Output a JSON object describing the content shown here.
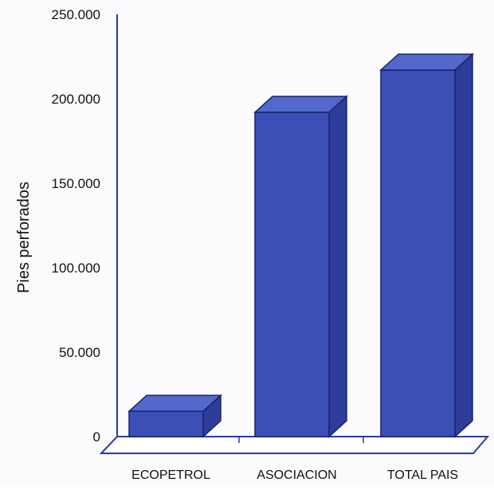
{
  "chart_data": {
    "type": "bar",
    "style": "3d",
    "title": "",
    "xlabel": "",
    "ylabel": "Pies perforados",
    "categories": [
      "ECOPETROL",
      "ASOCIACION",
      "TOTAL PAIS"
    ],
    "values": [
      15000,
      192000,
      217000
    ],
    "ylim": [
      0,
      250000
    ],
    "yticks": [
      "0",
      "50.000",
      "100.000",
      "150.000",
      "200.000",
      "250.000"
    ],
    "grid": false,
    "legend": "none",
    "colors": {
      "bar_front": "#3c4fb6",
      "bar_top": "#5468cc",
      "bar_side": "#2e3d98",
      "bar_edge": "#1a2270",
      "axis": "#2a3aa8"
    }
  }
}
